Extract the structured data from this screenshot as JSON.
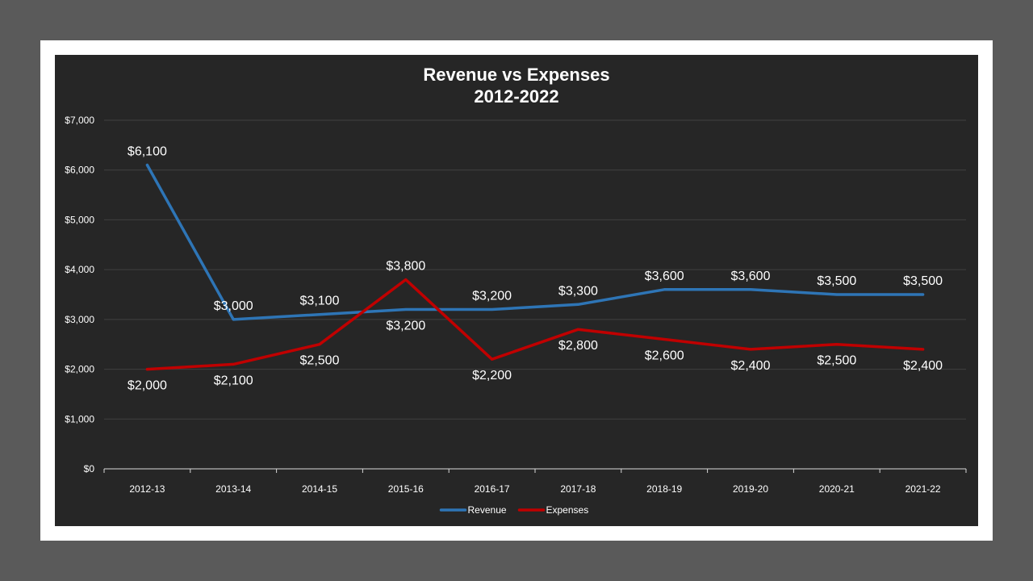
{
  "chart_data": {
    "type": "line",
    "title": "Revenue vs Expenses",
    "subtitle": "2012-2022",
    "categories": [
      "2012-13",
      "2013-14",
      "2014-15",
      "2015-16",
      "2016-17",
      "2017-18",
      "2018-19",
      "2019-20",
      "2020-21",
      "2021-22"
    ],
    "series": [
      {
        "name": "Revenue",
        "color": "#2e75b6",
        "values": [
          6100,
          3000,
          3100,
          3200,
          3200,
          3300,
          3600,
          3600,
          3500,
          3500
        ],
        "labels": [
          "$6,100",
          "$3,000",
          "$3,100",
          "$3,200",
          "$3,200",
          "$3,300",
          "$3,600",
          "$3,600",
          "$3,500",
          "$3,500"
        ]
      },
      {
        "name": "Expenses",
        "color": "#c00000",
        "values": [
          2000,
          2100,
          2500,
          3800,
          2200,
          2800,
          2600,
          2400,
          2500,
          2400
        ],
        "labels": [
          "$2,000",
          "$2,100",
          "$2,500",
          "$3,800",
          "$2,200",
          "$2,800",
          "$2,600",
          "$2,400",
          "$2,500",
          "$2,400"
        ]
      }
    ],
    "ylim": [
      0,
      7000
    ],
    "yticks": [
      0,
      1000,
      2000,
      3000,
      4000,
      5000,
      6000,
      7000
    ],
    "ytick_labels": [
      "$0",
      "$1,000",
      "$2,000",
      "$3,000",
      "$4,000",
      "$5,000",
      "$6,000",
      "$7,000"
    ],
    "xlabel": "",
    "ylabel": "",
    "grid": "horizontal",
    "legend": "bottom"
  },
  "colors": {
    "background": "#5a5a5a",
    "frame": "#ffffff",
    "plot_background": "#262626",
    "gridline": "#404040",
    "axis_line": "#d9d9d9",
    "text": "#ffffff"
  }
}
